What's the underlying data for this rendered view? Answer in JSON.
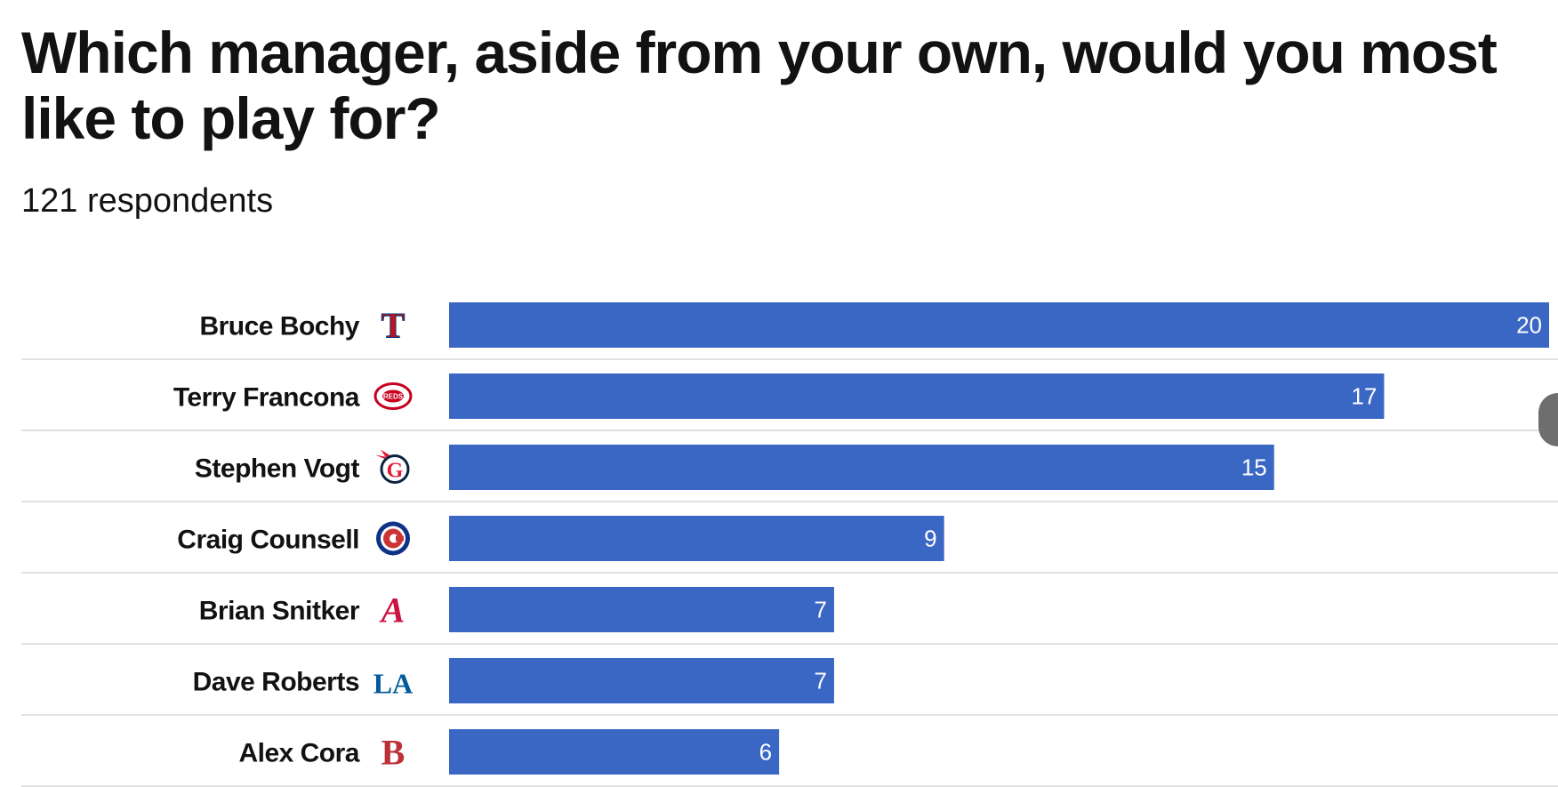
{
  "title": "Which manager, aside from your own, would you most like to play for?",
  "subtitle": "121 respondents",
  "colors": {
    "bar": "#3a66c4",
    "divider": "#e2e2e2",
    "text": "#121212",
    "value_label": "#ffffff"
  },
  "chart_data": {
    "type": "bar",
    "orientation": "horizontal",
    "title": "Which manager, aside from your own, would you most like to play for?",
    "subtitle": "121 respondents",
    "categories": [
      "Bruce Bochy",
      "Terry Francona",
      "Stephen Vogt",
      "Craig Counsell",
      "Brian Snitker",
      "Dave Roberts",
      "Alex Cora"
    ],
    "values": [
      20,
      17,
      15,
      9,
      7,
      7,
      6
    ],
    "xlim": [
      0,
      20
    ],
    "grid": false,
    "data_labels": true,
    "team_logos": [
      {
        "icon": "rangers-t-logo-icon",
        "color": "#c0111f",
        "text": "T"
      },
      {
        "icon": "reds-logo-icon",
        "color": "#c6011f",
        "text": "REDS"
      },
      {
        "icon": "guardians-g-logo-icon",
        "color": "#0c2340",
        "text": "G"
      },
      {
        "icon": "cubs-c-logo-icon",
        "color": "#0e3386",
        "text": "C"
      },
      {
        "icon": "braves-a-logo-icon",
        "color": "#ce1141",
        "text": "A"
      },
      {
        "icon": "dodgers-la-logo-icon",
        "color": "#005a9c",
        "text": "LA"
      },
      {
        "icon": "red-sox-b-logo-icon",
        "color": "#bd3039",
        "text": "B"
      }
    ]
  }
}
